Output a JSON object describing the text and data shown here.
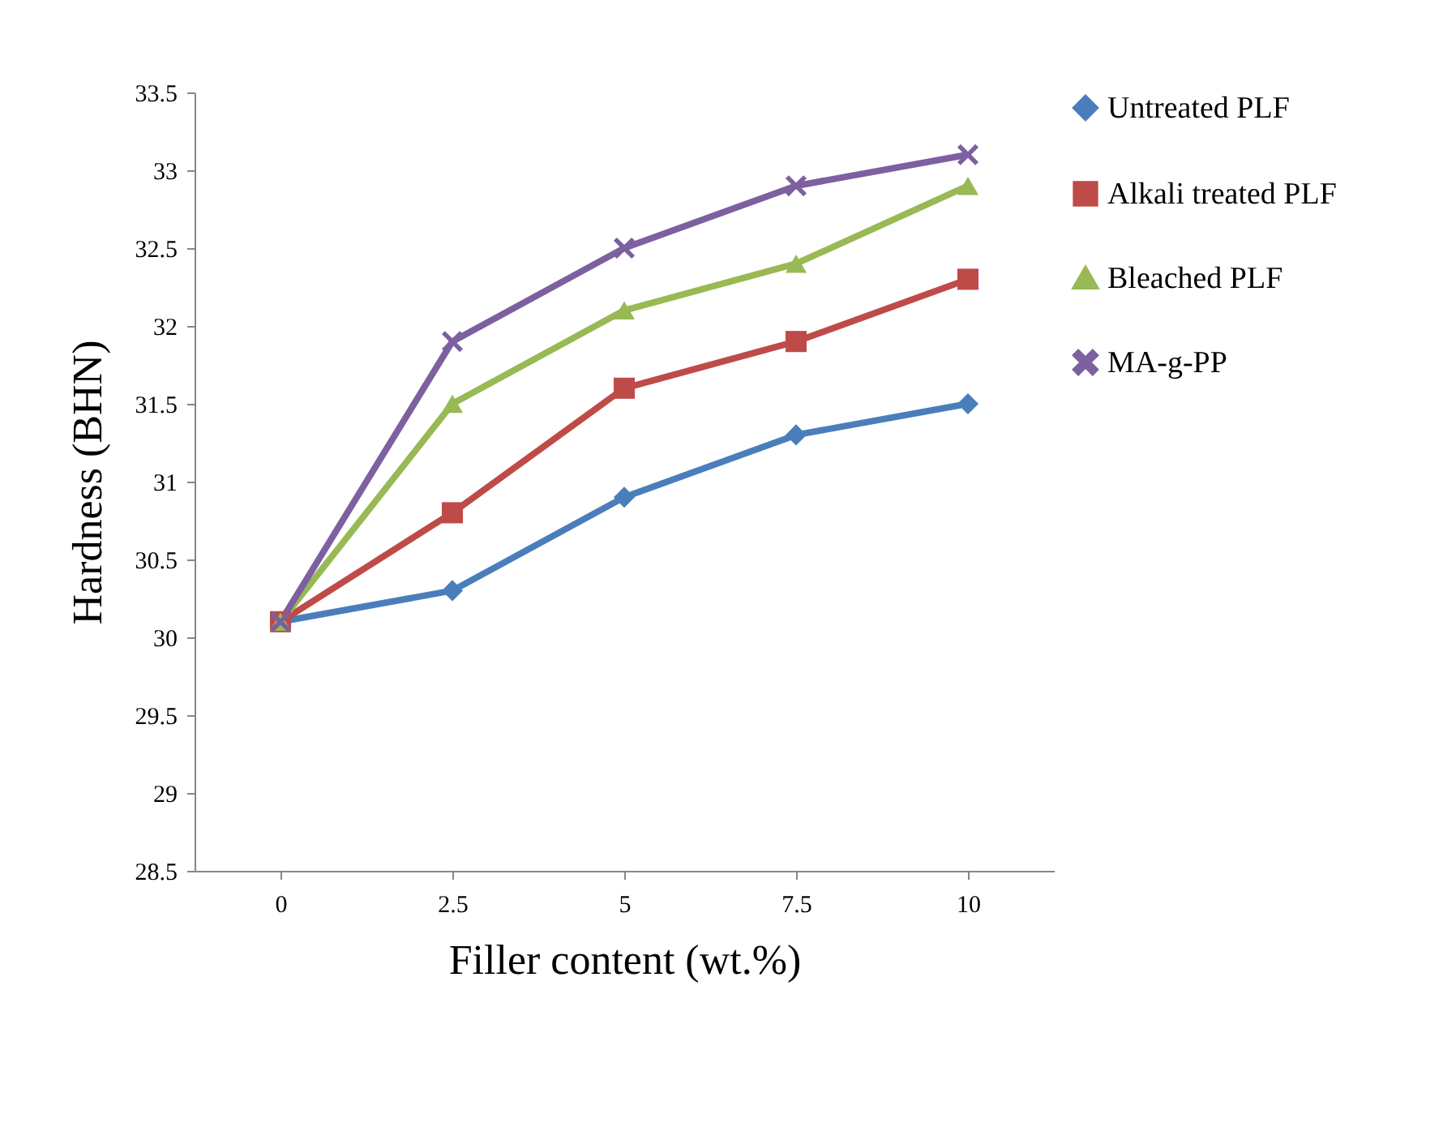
{
  "chart_data": {
    "type": "line",
    "xlabel": "Filler content (wt.%)",
    "ylabel": "Hardness (BHN)",
    "categories": [
      "0",
      "2.5",
      "5",
      "7.5",
      "10"
    ],
    "ylim": [
      28.5,
      33.5
    ],
    "yticks": [
      28.5,
      29,
      29.5,
      30,
      30.5,
      31,
      31.5,
      32,
      32.5,
      33,
      33.5
    ],
    "grid": false,
    "legend": "right",
    "series": [
      {
        "name": "Untreated PLF",
        "color": "#4a7ebb",
        "marker": "diamond",
        "values": [
          30.1,
          30.3,
          30.9,
          31.3,
          31.5
        ]
      },
      {
        "name": "Alkali treated PLF",
        "color": "#be4b48",
        "marker": "square",
        "values": [
          30.1,
          30.8,
          31.6,
          31.9,
          32.3
        ]
      },
      {
        "name": "Bleached PLF",
        "color": "#98b954",
        "marker": "triangle",
        "values": [
          30.1,
          31.5,
          32.1,
          32.4,
          32.9
        ]
      },
      {
        "name": "MA-g-PP",
        "color": "#7d60a0",
        "marker": "cross",
        "values": [
          30.1,
          31.9,
          32.5,
          32.9,
          33.1
        ]
      }
    ]
  }
}
